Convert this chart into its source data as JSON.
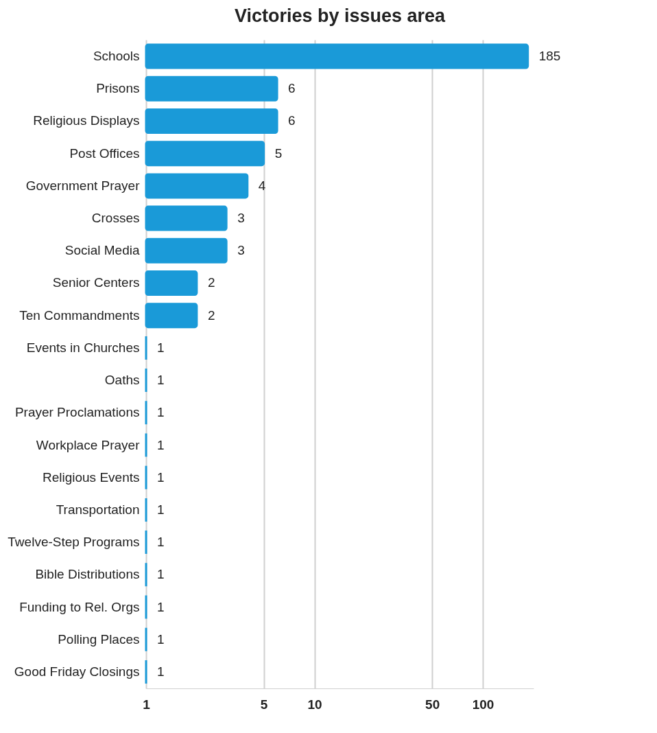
{
  "chart_data": {
    "type": "bar",
    "orientation": "horizontal",
    "title": "Victories by issues area",
    "categories": [
      "Schools",
      "Prisons",
      "Religious Displays",
      "Post Offices",
      "Government Prayer",
      "Crosses",
      "Social Media",
      "Senior Centers",
      "Ten Commandments",
      "Events in Churches",
      "Oaths",
      "Prayer Proclamations",
      "Workplace Prayer",
      "Religious Events",
      "Transportation",
      "Twelve-Step Programs",
      "Bible Distributions",
      "Funding to Rel. Orgs",
      "Polling Places",
      "Good Friday Closings"
    ],
    "values": [
      185,
      6,
      6,
      5,
      4,
      3,
      3,
      2,
      2,
      1,
      1,
      1,
      1,
      1,
      1,
      1,
      1,
      1,
      1,
      1
    ],
    "color": "#1a9ad8",
    "log": "x",
    "xlim": [
      1,
      200
    ],
    "xticks": [
      1,
      5,
      10,
      50,
      100
    ],
    "grid": "x",
    "data_labels": true
  }
}
